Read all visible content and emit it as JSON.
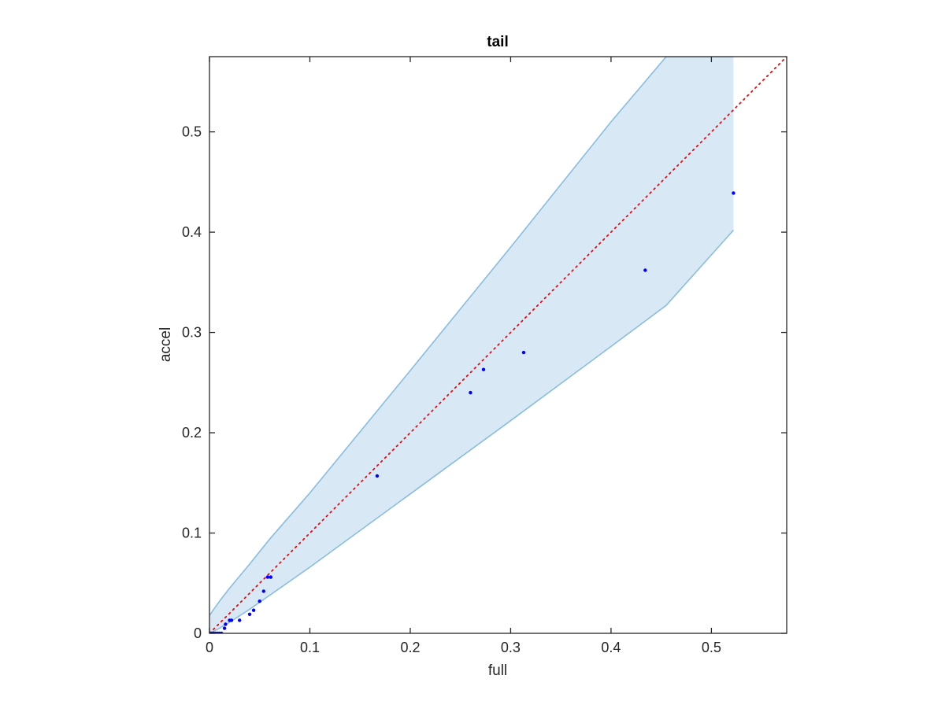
{
  "chart_data": {
    "type": "scatter",
    "title": "tail",
    "xlabel": "full",
    "ylabel": "accel",
    "xlim": [
      0,
      0.575
    ],
    "ylim": [
      0,
      0.575
    ],
    "xticks": [
      0,
      0.1,
      0.2,
      0.3,
      0.4,
      0.5
    ],
    "xtick_labels": [
      "0",
      "0.1",
      "0.2",
      "0.3",
      "0.4",
      "0.5"
    ],
    "yticks": [
      0,
      0.1,
      0.2,
      0.3,
      0.4,
      0.5
    ],
    "ytick_labels": [
      "0",
      "0.1",
      "0.2",
      "0.3",
      "0.4",
      "0.5"
    ],
    "grid": false,
    "points": {
      "color": "#0000ff",
      "x": [
        0,
        0.002,
        0.004,
        0.006,
        0.008,
        0.01,
        0.012,
        0.015,
        0.016,
        0.02,
        0.022,
        0.03,
        0.04,
        0.044,
        0.05,
        0.054,
        0.058,
        0.061,
        0.167,
        0.26,
        0.273,
        0.313,
        0.434,
        0.522
      ],
      "y": [
        0,
        0,
        0,
        0,
        0,
        0,
        0,
        0.005,
        0.009,
        0.013,
        0.013,
        0.013,
        0.019,
        0.023,
        0.032,
        0.042,
        0.056,
        0.056,
        0.157,
        0.24,
        0.263,
        0.28,
        0.362,
        0.439
      ]
    },
    "band": {
      "fill": "#d9e8f5",
      "edge": "#88bde0",
      "x": [
        0,
        0.01,
        0.02,
        0.04,
        0.06,
        0.1,
        0.2,
        0.3,
        0.4,
        0.455,
        0.522
      ],
      "lower": [
        0,
        0.005,
        0.011,
        0.024,
        0.038,
        0.066,
        0.139,
        0.212,
        0.286,
        0.327,
        0.402
      ],
      "upper": [
        0.018,
        0.032,
        0.045,
        0.069,
        0.094,
        0.14,
        0.262,
        0.385,
        0.51,
        0.575,
        0.575
      ]
    },
    "reference_line": {
      "color": "#ff0000",
      "style": "dotted",
      "x": [
        0,
        0.575
      ],
      "y": [
        0,
        0.575
      ]
    }
  }
}
